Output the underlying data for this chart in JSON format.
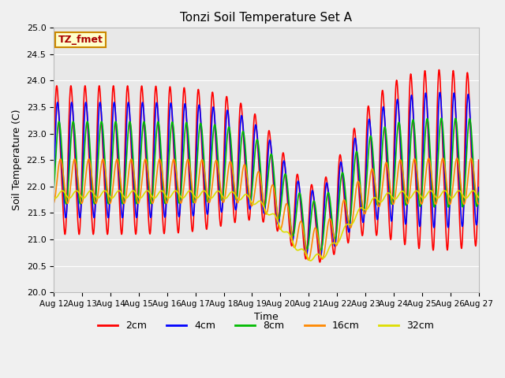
{
  "title": "Tonzi Soil Temperature Set A",
  "xlabel": "Time",
  "ylabel": "Soil Temperature (C)",
  "ylim": [
    20.0,
    25.0
  ],
  "yticks": [
    20.0,
    20.5,
    21.0,
    21.5,
    22.0,
    22.5,
    23.0,
    23.5,
    24.0,
    24.5,
    25.0
  ],
  "xtick_labels": [
    "Aug 12",
    "Aug 13",
    "Aug 14",
    "Aug 15",
    "Aug 16",
    "Aug 17",
    "Aug 18",
    "Aug 19",
    "Aug 20",
    "Aug 21",
    "Aug 22",
    "Aug 23",
    "Aug 24",
    "Aug 25",
    "Aug 26",
    "Aug 27"
  ],
  "annotation_text": "TZ_fmet",
  "annotation_bbox_facecolor": "#ffffcc",
  "annotation_bbox_edgecolor": "#cc8800",
  "annotation_text_color": "#aa0000",
  "lines": {
    "2cm": {
      "color": "#ff0000",
      "linewidth": 1.2
    },
    "4cm": {
      "color": "#0000ff",
      "linewidth": 1.2
    },
    "8cm": {
      "color": "#00bb00",
      "linewidth": 1.2
    },
    "16cm": {
      "color": "#ff8800",
      "linewidth": 1.2
    },
    "32cm": {
      "color": "#dddd00",
      "linewidth": 1.2
    }
  },
  "fig_facecolor": "#f0f0f0",
  "plot_bg_color": "#e8e8e8",
  "grid_color": "#ffffff"
}
